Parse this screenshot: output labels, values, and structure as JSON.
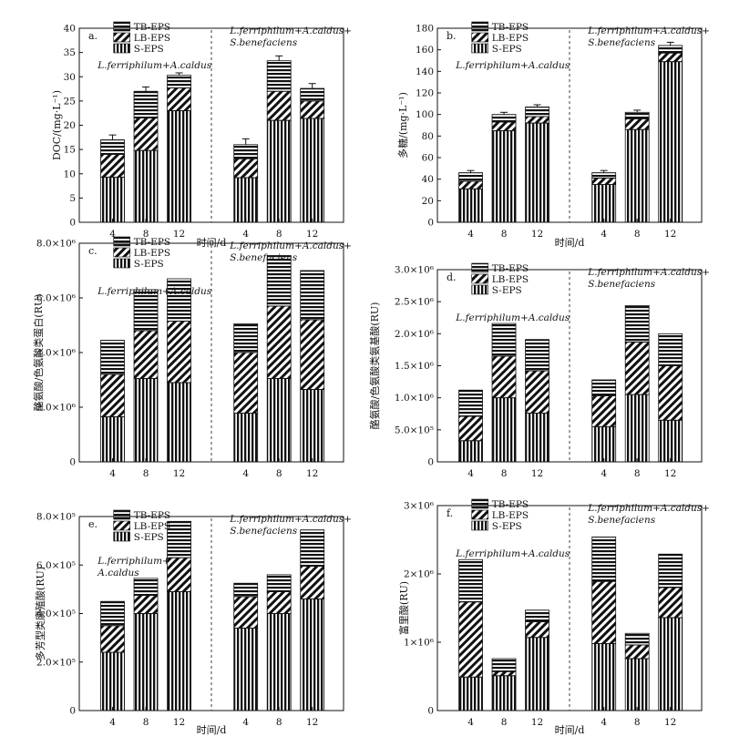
{
  "legend_labels": [
    "TB-EPS",
    "LB-EPS",
    "S-EPS"
  ],
  "group_labels": {
    "left": [
      "L.ferriphilum+A.caldus"
    ],
    "right": [
      "L.ferriphilum+A.caldus+",
      "S.benefaciens"
    ]
  },
  "chart_data": [
    {
      "id": "a",
      "type": "bar",
      "stacked": true,
      "panel_label": "a.",
      "ylabel": "DOC/(mg·L⁻¹)",
      "xlabel": "时间/d",
      "ylim": [
        0,
        40
      ],
      "yticks": [
        0,
        5,
        10,
        15,
        20,
        25,
        30,
        35,
        40
      ],
      "ytick_labels": [
        "0",
        "5",
        "10",
        "15",
        "20",
        "25",
        "30",
        "35",
        "40"
      ],
      "categories": [
        "4",
        "8",
        "12",
        "4",
        "8",
        "12"
      ],
      "left_group_label": [
        "L.ferriphilum+A.caldus"
      ],
      "right_group_label": [
        "L.ferriphilum+A.caldus+",
        "S.benefaciens"
      ],
      "series": [
        {
          "name": "S-EPS",
          "values": [
            9.3,
            14.8,
            23.0,
            9.2,
            21.0,
            21.4
          ]
        },
        {
          "name": "LB-EPS",
          "values": [
            4.7,
            6.7,
            4.7,
            3.9,
            6.0,
            3.6
          ]
        },
        {
          "name": "TB-EPS",
          "values": [
            3.0,
            5.5,
            2.6,
            2.9,
            6.3,
            2.6
          ]
        }
      ],
      "error": [
        1.0,
        0.9,
        0.5,
        1.2,
        1.0,
        1.0
      ]
    },
    {
      "id": "b",
      "type": "bar",
      "stacked": true,
      "panel_label": "b.",
      "ylabel": "多糖/(mg·L⁻¹)",
      "xlabel": "时间/d",
      "ylim": [
        0,
        180
      ],
      "yticks": [
        0,
        20,
        40,
        60,
        80,
        100,
        120,
        140,
        160,
        180
      ],
      "ytick_labels": [
        "0",
        "20",
        "40",
        "60",
        "80",
        "100",
        "120",
        "140",
        "160",
        "180"
      ],
      "categories": [
        "4",
        "8",
        "12",
        "4",
        "8",
        "12"
      ],
      "left_group_label": [
        "L.ferriphilum+A.caldus"
      ],
      "right_group_label": [
        "L.ferriphilum+A.caldus+",
        "S.benefaciens"
      ],
      "series": [
        {
          "name": "S-EPS",
          "values": [
            31,
            85,
            92,
            35,
            86,
            149
          ]
        },
        {
          "name": "LB-EPS",
          "values": [
            7,
            8,
            6,
            6,
            10,
            8
          ]
        },
        {
          "name": "TB-EPS",
          "values": [
            8,
            7,
            9,
            5,
            6,
            7
          ]
        }
      ],
      "error": [
        2,
        2,
        2,
        2,
        2,
        3
      ]
    },
    {
      "id": "c",
      "type": "bar",
      "stacked": true,
      "panel_label": "c.",
      "ylabel": "酪氨酸/色氨酸类蛋白(RU)",
      "xlabel": "",
      "ylim": [
        0,
        8000000
      ],
      "yticks": [
        0,
        2000000,
        4000000,
        6000000,
        8000000
      ],
      "ytick_labels": [
        "0",
        "2.0×10⁶",
        "4.0×10⁶",
        "6.0×10⁶",
        "8.0×10⁶"
      ],
      "categories": [
        "4",
        "8",
        "12",
        "4",
        "8",
        "12"
      ],
      "left_group_label": [
        "L.ferriphilum+A.caldus"
      ],
      "right_group_label": [
        "L.ferriphilum+A.caldus+",
        "S.benefaciens"
      ],
      "series": [
        {
          "name": "S-EPS",
          "values": [
            1650000,
            3050000,
            2900000,
            1780000,
            3050000,
            2650000
          ]
        },
        {
          "name": "LB-EPS",
          "values": [
            1550000,
            1750000,
            2250000,
            2220000,
            2650000,
            2550000
          ]
        },
        {
          "name": "TB-EPS",
          "values": [
            1250000,
            1500000,
            1550000,
            1050000,
            1850000,
            1800000
          ]
        }
      ]
    },
    {
      "id": "d",
      "type": "bar",
      "stacked": true,
      "panel_label": "d.",
      "ylabel": "酪氨酸/色氨酸类氨基酸(RU)",
      "xlabel": "",
      "ylim": [
        0,
        3000000
      ],
      "yticks": [
        0,
        500000,
        1000000,
        1500000,
        2000000,
        2500000,
        3000000
      ],
      "ytick_labels": [
        "0",
        "5.0×10⁵",
        "1.0×10⁶",
        "1.5×10⁶",
        "2.0×10⁶",
        "2.5×10⁶",
        "3.0×10⁶"
      ],
      "categories": [
        "4",
        "8",
        "12",
        "4",
        "8",
        "12"
      ],
      "left_group_label": [
        "L.ferriphilum+A.caldus"
      ],
      "right_group_label": [
        "L.ferriphilum+A.caldus+",
        "S.benefaciens"
      ],
      "series": [
        {
          "name": "S-EPS",
          "values": [
            330000,
            1000000,
            760000,
            550000,
            1050000,
            650000
          ]
        },
        {
          "name": "LB-EPS",
          "values": [
            380000,
            650000,
            660000,
            480000,
            820000,
            850000
          ]
        },
        {
          "name": "TB-EPS",
          "values": [
            410000,
            510000,
            490000,
            250000,
            570000,
            500000
          ]
        }
      ]
    },
    {
      "id": "e",
      "type": "bar",
      "stacked": true,
      "panel_label": "e.",
      "ylabel": "多芳型类腐殖酸(RU)",
      "xlabel": "时间/d",
      "ylim": [
        0,
        800000
      ],
      "yticks": [
        0,
        200000,
        400000,
        600000,
        800000
      ],
      "ytick_labels": [
        "0",
        "2.0×10⁵",
        "4.0×10⁵",
        "6.0×10⁵",
        "8.0×10⁵"
      ],
      "categories": [
        "4",
        "8",
        "12",
        "4",
        "8",
        "12"
      ],
      "left_group_label": [
        "L.ferriphilum+",
        "A.caldus"
      ],
      "right_group_label": [
        "L.ferriphilum+A.caldus+",
        "S.benefaciens"
      ],
      "series": [
        {
          "name": "S-EPS",
          "values": [
            240000,
            400000,
            490000,
            340000,
            400000,
            460000
          ]
        },
        {
          "name": "LB-EPS",
          "values": [
            110000,
            75000,
            140000,
            130000,
            90000,
            135000
          ]
        },
        {
          "name": "TB-EPS",
          "values": [
            100000,
            70000,
            150000,
            55000,
            70000,
            150000
          ]
        }
      ]
    },
    {
      "id": "f",
      "type": "bar",
      "stacked": true,
      "panel_label": "f.",
      "ylabel": "富里酸(RU)",
      "xlabel": "时间/d",
      "ylim": [
        0,
        3000000
      ],
      "yticks": [
        0,
        1000000,
        2000000,
        3000000
      ],
      "ytick_labels": [
        "0",
        "1×10⁶",
        "2×10⁶",
        "3×10⁶"
      ],
      "categories": [
        "4",
        "8",
        "12",
        "4",
        "8",
        "12"
      ],
      "left_group_label": [
        "L.ferriphilum+A.caldus"
      ],
      "right_group_label": [
        "L.ferriphilum+A.caldus+",
        "S.benefaciens"
      ],
      "series": [
        {
          "name": "S-EPS",
          "values": [
            490000,
            510000,
            1070000,
            980000,
            760000,
            1360000
          ]
        },
        {
          "name": "LB-EPS",
          "values": [
            1100000,
            60000,
            230000,
            910000,
            200000,
            440000
          ]
        },
        {
          "name": "TB-EPS",
          "values": [
            620000,
            190000,
            170000,
            650000,
            170000,
            490000
          ]
        }
      ]
    }
  ]
}
